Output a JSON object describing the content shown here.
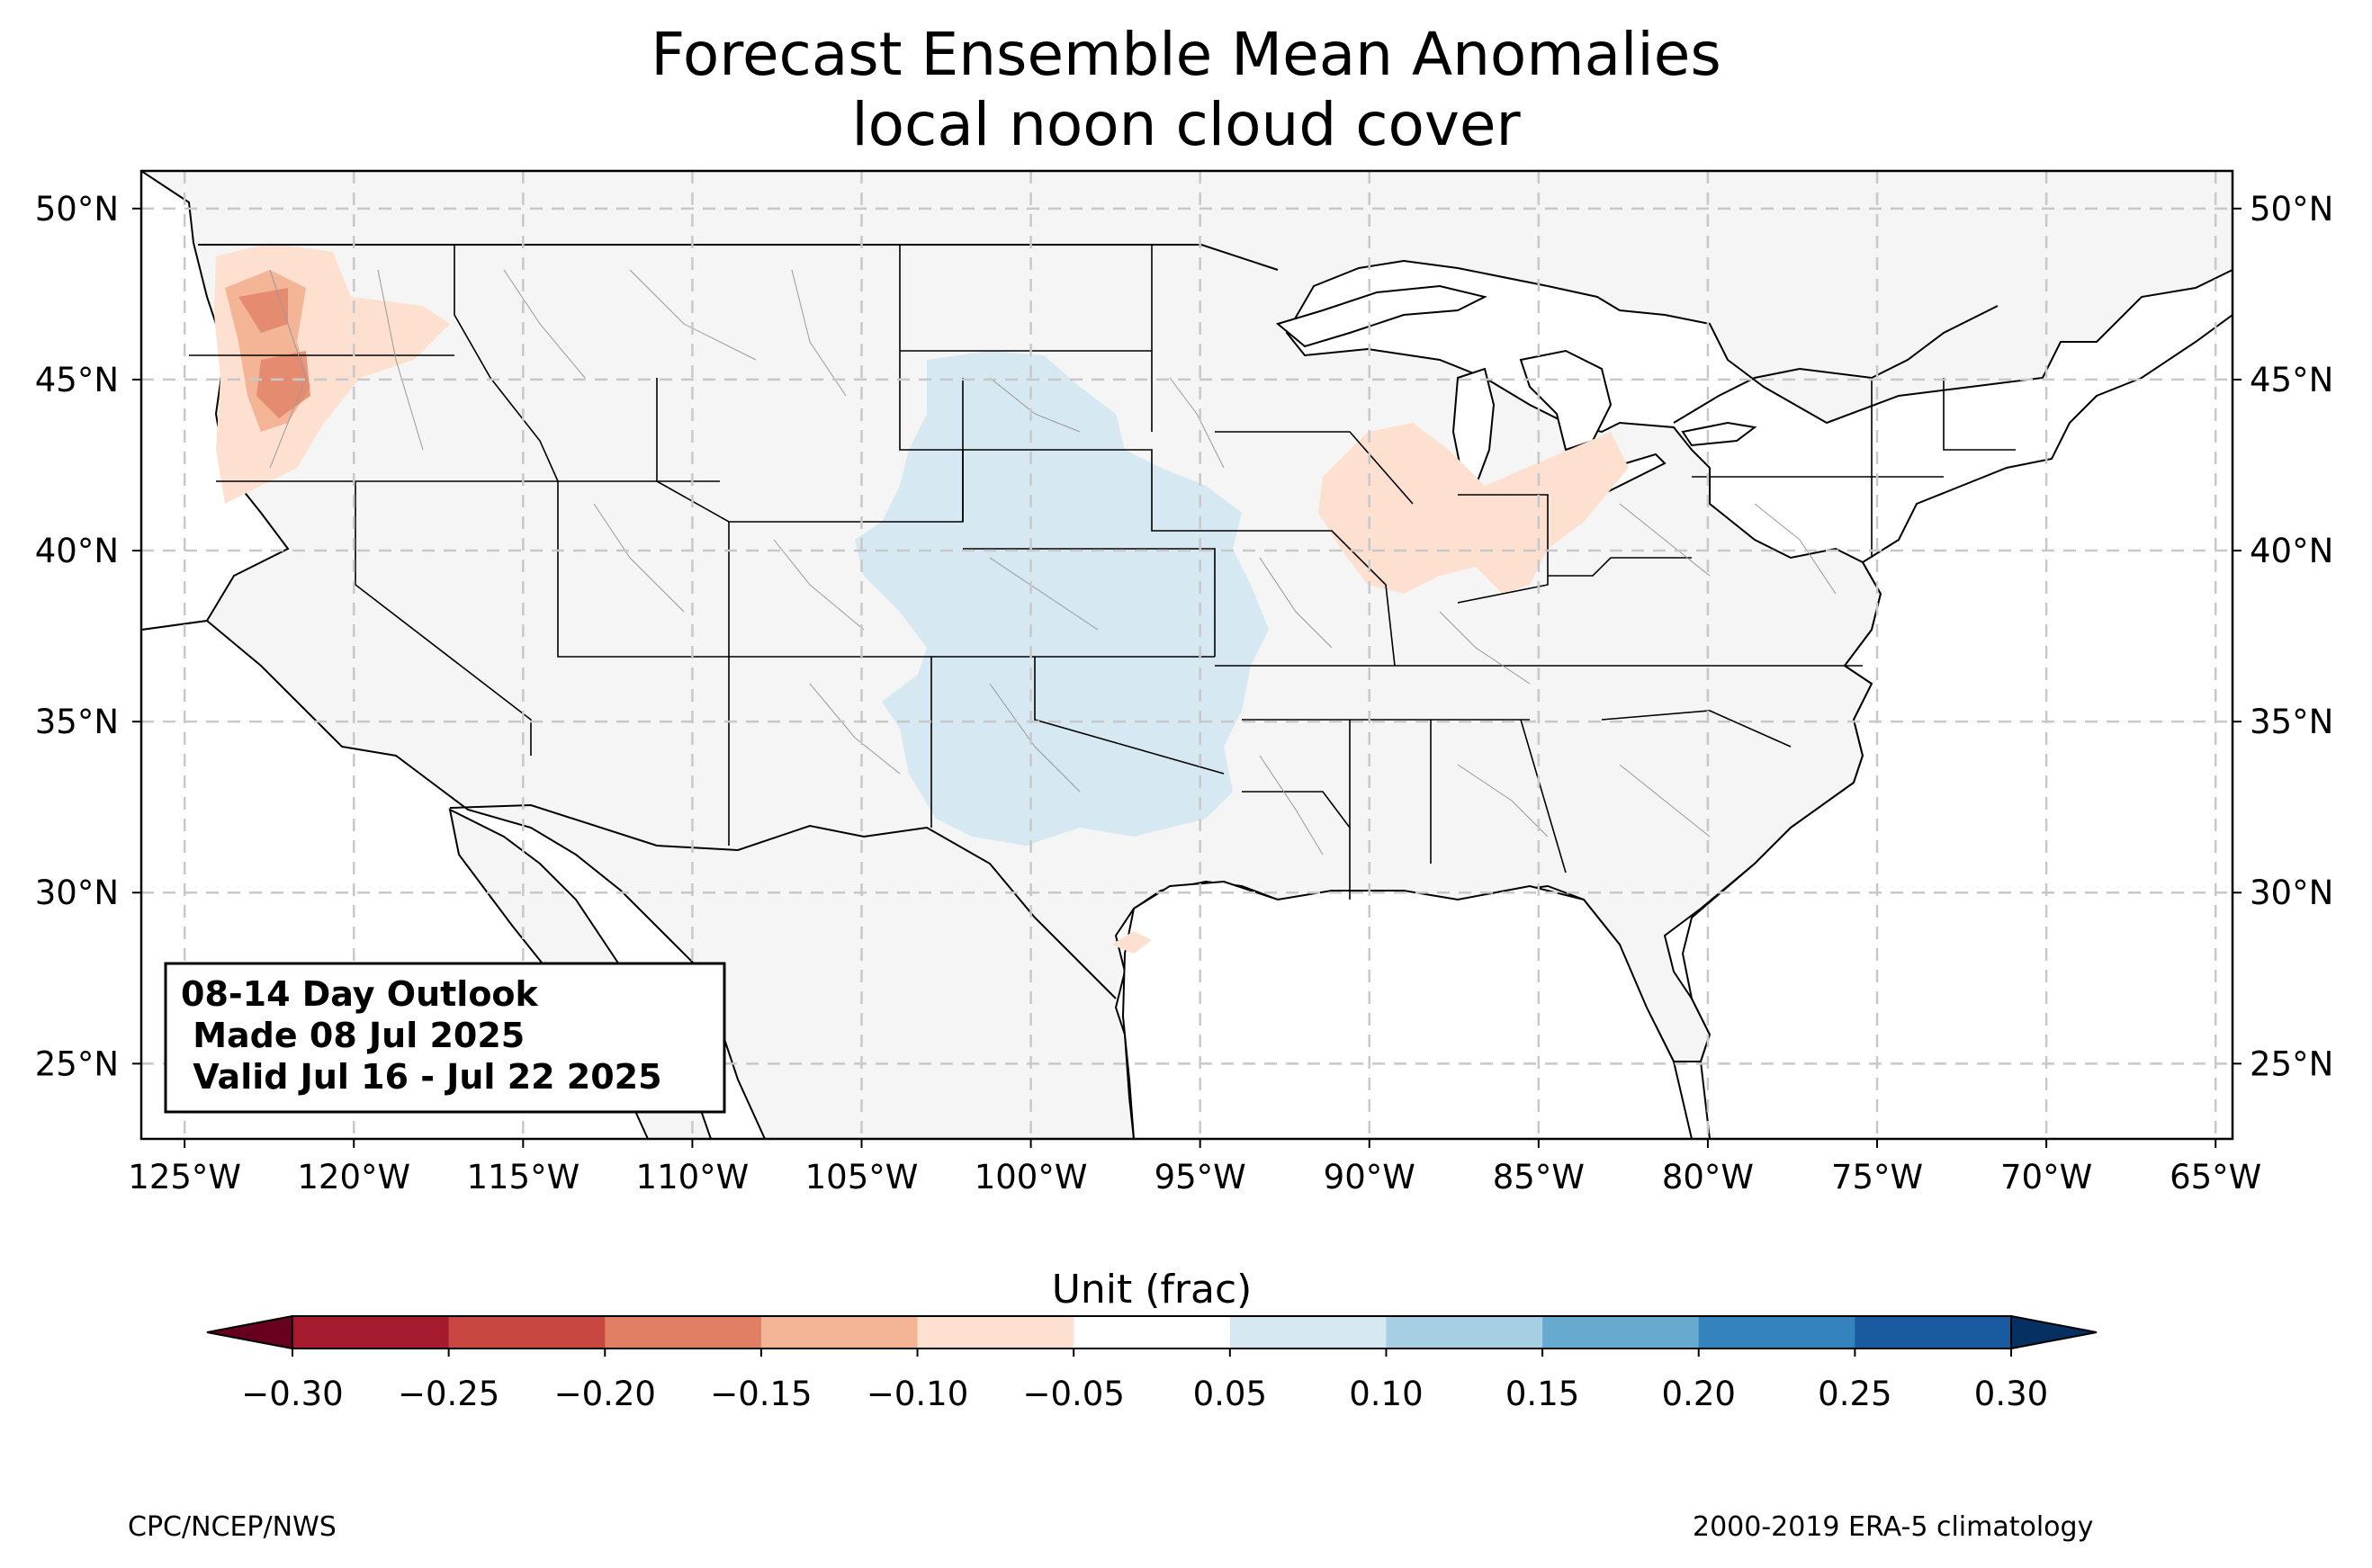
{
  "title": {
    "line1": "Forecast Ensemble Mean Anomalies",
    "line2": "local noon cloud cover"
  },
  "map": {
    "lon_ticks": [
      "125°W",
      "120°W",
      "115°W",
      "110°W",
      "105°W",
      "100°W",
      "95°W",
      "90°W",
      "85°W",
      "80°W",
      "75°W",
      "70°W",
      "65°W"
    ],
    "lat_ticks": [
      "50°N",
      "45°N",
      "40°N",
      "35°N",
      "30°N",
      "25°N"
    ],
    "land_color": "#f5f5f5",
    "gridline_color": "#c8c8c8",
    "anomaly_regions": [
      {
        "name": "Pacific Northwest",
        "category": "-0.15 to -0.10"
      },
      {
        "name": "Pacific Northwest core",
        "category": "-0.20 to -0.15"
      },
      {
        "name": "Midwest / Ohio Valley",
        "category": "-0.10 to -0.05"
      },
      {
        "name": "Central Plains",
        "category": "0.05 to 0.10"
      }
    ]
  },
  "outlook_box": {
    "line1": "08-14 Day Outlook",
    "line2": " Made 08 Jul 2025",
    "line3": " Valid Jul 16 - Jul 22 2025"
  },
  "colorbar": {
    "label": "Unit (frac)",
    "ticks": [
      "−0.30",
      "−0.25",
      "−0.20",
      "−0.15",
      "−0.10",
      "−0.05",
      "0.05",
      "0.10",
      "0.15",
      "0.20",
      "0.25",
      "0.30"
    ],
    "under_color": "#67001f",
    "over_color": "#053061",
    "colors": [
      "#a51a2c",
      "#c94741",
      "#e07f63",
      "#f4b597",
      "#fde0cf",
      "#ffffff",
      "#d6e8f1",
      "#a6cfe3",
      "#68a9d0",
      "#3483bc",
      "#1a5aa0"
    ]
  },
  "footer": {
    "left": "CPC/NCEP/NWS",
    "right": "2000-2019 ERA-5 climatology"
  }
}
